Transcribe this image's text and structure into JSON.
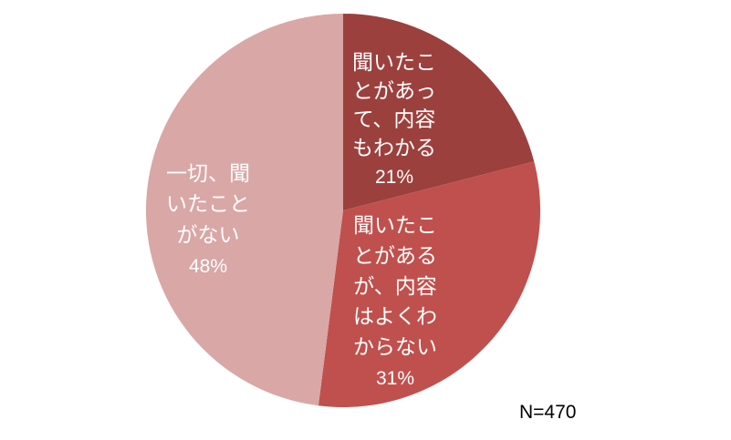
{
  "chart_data": {
    "type": "pie",
    "slices": [
      {
        "label_lines": [
          "聞いたこ",
          "とがあっ",
          "て、内容",
          "もわかる"
        ],
        "value": 21,
        "value_label": "21%",
        "color": "#9C403E"
      },
      {
        "label_lines": [
          "聞いたこ",
          "とがある",
          "が、内容",
          "はよくわ",
          "からない"
        ],
        "value": 31,
        "value_label": "31%",
        "color": "#C0504D"
      },
      {
        "label_lines": [
          "一切、聞",
          "いたこと",
          "がない"
        ],
        "value": 48,
        "value_label": "48%",
        "color": "#D9A7A6"
      }
    ],
    "label_color": "#FFFFFF",
    "annotation": "N=470"
  }
}
